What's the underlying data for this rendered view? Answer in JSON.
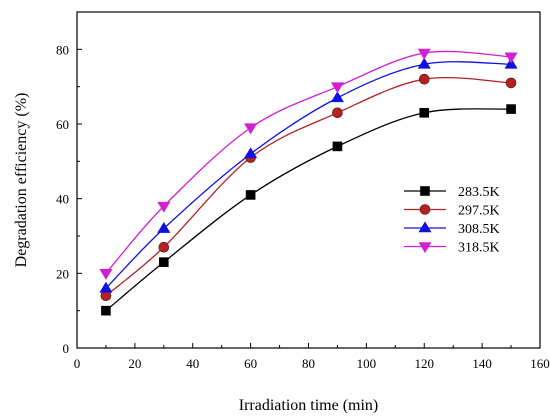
{
  "chart_data": {
    "type": "line",
    "xlabel": "Irradiation time (min)",
    "ylabel": "Degradation efficiency (%)",
    "xlim": [
      0,
      160
    ],
    "ylim": [
      0,
      90
    ],
    "xticks": [
      0,
      20,
      40,
      60,
      80,
      100,
      120,
      140,
      160
    ],
    "yticks": [
      0,
      20,
      40,
      60,
      80
    ],
    "grid": false,
    "legend_position": "right",
    "x": [
      10,
      30,
      60,
      90,
      120,
      150
    ],
    "series": [
      {
        "name": "283.5K",
        "color": "#000000",
        "marker": "square",
        "values": [
          10,
          23,
          41,
          54,
          63,
          64
        ]
      },
      {
        "name": "297.5K",
        "color": "#b22222",
        "marker": "circle",
        "values": [
          14,
          27,
          51,
          63,
          72,
          71
        ]
      },
      {
        "name": "308.5K",
        "color": "#1010e0",
        "marker": "triangle-up",
        "values": [
          16,
          32,
          52,
          67,
          76,
          76
        ]
      },
      {
        "name": "318.5K",
        "color": "#d020d0",
        "marker": "triangle-down",
        "values": [
          20,
          38,
          59,
          70,
          79,
          78
        ]
      }
    ]
  }
}
